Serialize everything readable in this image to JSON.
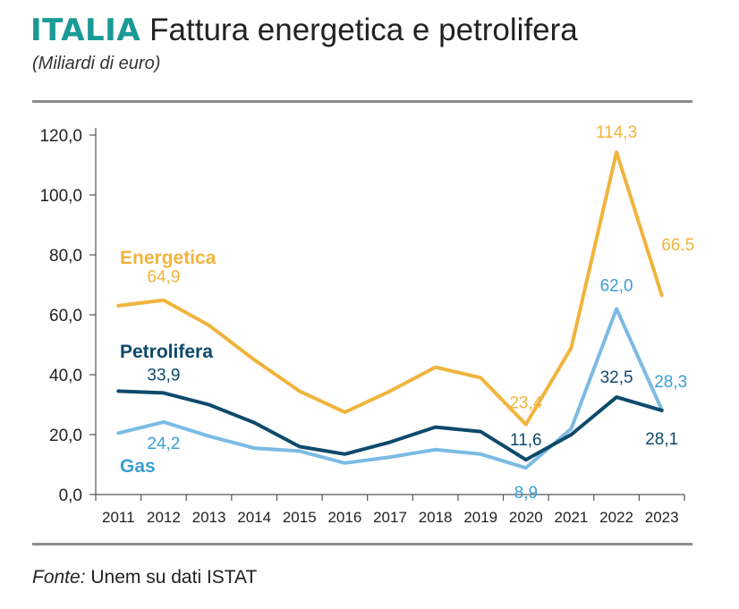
{
  "header": {
    "brand": "ITALIA",
    "title": "Fattura energetica e petrolifera",
    "subtitle": "(Miliardi di euro)"
  },
  "footer": {
    "source_label": "Fonte:",
    "source_text": " Unem su dati ISTAT"
  },
  "colors": {
    "brand": "#1a9a96",
    "energetica": "#f0b43c",
    "petrolifera": "#0d4a6b",
    "gas": "#7bbbe3",
    "gas_label": "#3a9fd3"
  },
  "chart_data": {
    "type": "line",
    "x": [
      "2011",
      "2012",
      "2013",
      "2014",
      "2015",
      "2016",
      "2017",
      "2018",
      "2019",
      "2020",
      "2021",
      "2022",
      "2023"
    ],
    "ylim": [
      0,
      120
    ],
    "yticks": [
      0,
      20,
      40,
      60,
      80,
      100,
      120
    ],
    "ytick_labels": [
      "0,0",
      "20,0",
      "40,0",
      "60,0",
      "80,0",
      "100,0",
      "120,0"
    ],
    "grid": false,
    "series": [
      {
        "name": "Energetica",
        "color": "#f0b43c",
        "values": [
          63.0,
          64.9,
          56.5,
          45.0,
          34.5,
          27.5,
          34.5,
          42.5,
          39.0,
          23.4,
          49.0,
          114.3,
          66.5
        ]
      },
      {
        "name": "Petrolifera",
        "color": "#0d4a6b",
        "values": [
          34.5,
          33.9,
          30.0,
          24.0,
          16.0,
          13.5,
          17.5,
          22.5,
          21.0,
          11.6,
          20.0,
          32.5,
          28.1
        ]
      },
      {
        "name": "Gas",
        "color": "#7bbbe3",
        "values": [
          20.5,
          24.2,
          19.5,
          15.5,
          14.5,
          10.5,
          12.5,
          15.0,
          13.5,
          8.9,
          22.0,
          62.0,
          28.3
        ]
      }
    ],
    "annotations": [
      {
        "series": 0,
        "index": 1,
        "text": "64,9"
      },
      {
        "series": 0,
        "index": 9,
        "text": "23,4"
      },
      {
        "series": 0,
        "index": 11,
        "text": "114,3"
      },
      {
        "series": 0,
        "index": 12,
        "text": "66.5"
      },
      {
        "series": 1,
        "index": 1,
        "text": "33,9"
      },
      {
        "series": 1,
        "index": 9,
        "text": "11,6"
      },
      {
        "series": 1,
        "index": 11,
        "text": "32,5"
      },
      {
        "series": 1,
        "index": 12,
        "text": "28,1"
      },
      {
        "series": 2,
        "index": 1,
        "text": "24,2"
      },
      {
        "series": 2,
        "index": 9,
        "text": "8,9"
      },
      {
        "series": 2,
        "index": 11,
        "text": "62,0"
      },
      {
        "series": 2,
        "index": 12,
        "text": "28,3"
      }
    ]
  }
}
